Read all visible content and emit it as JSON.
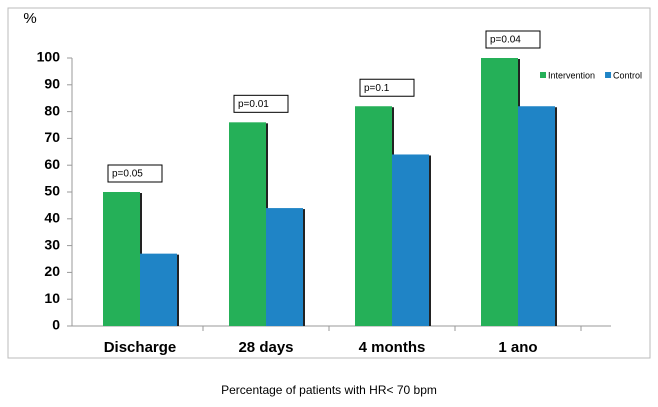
{
  "chart_data": {
    "type": "bar",
    "y_label": "%",
    "x_label": "Percentage of patients with HR< 70 bpm",
    "categories": [
      "Discharge",
      "28 days",
      "4 months",
      "1 ano"
    ],
    "series": [
      {
        "name": "Intervention",
        "color": "#25b058",
        "values": [
          50,
          76,
          82,
          100
        ]
      },
      {
        "name": "Control",
        "color": "#1f84c6",
        "values": [
          27,
          44,
          64,
          82
        ]
      }
    ],
    "annotations": [
      "p=0.05",
      "p=0.01",
      "p=0.1",
      "p=0.04"
    ],
    "ylim": [
      0,
      100
    ],
    "yticks": [
      0,
      10,
      20,
      30,
      40,
      50,
      60,
      70,
      80,
      90,
      100
    ],
    "legend": "right"
  }
}
